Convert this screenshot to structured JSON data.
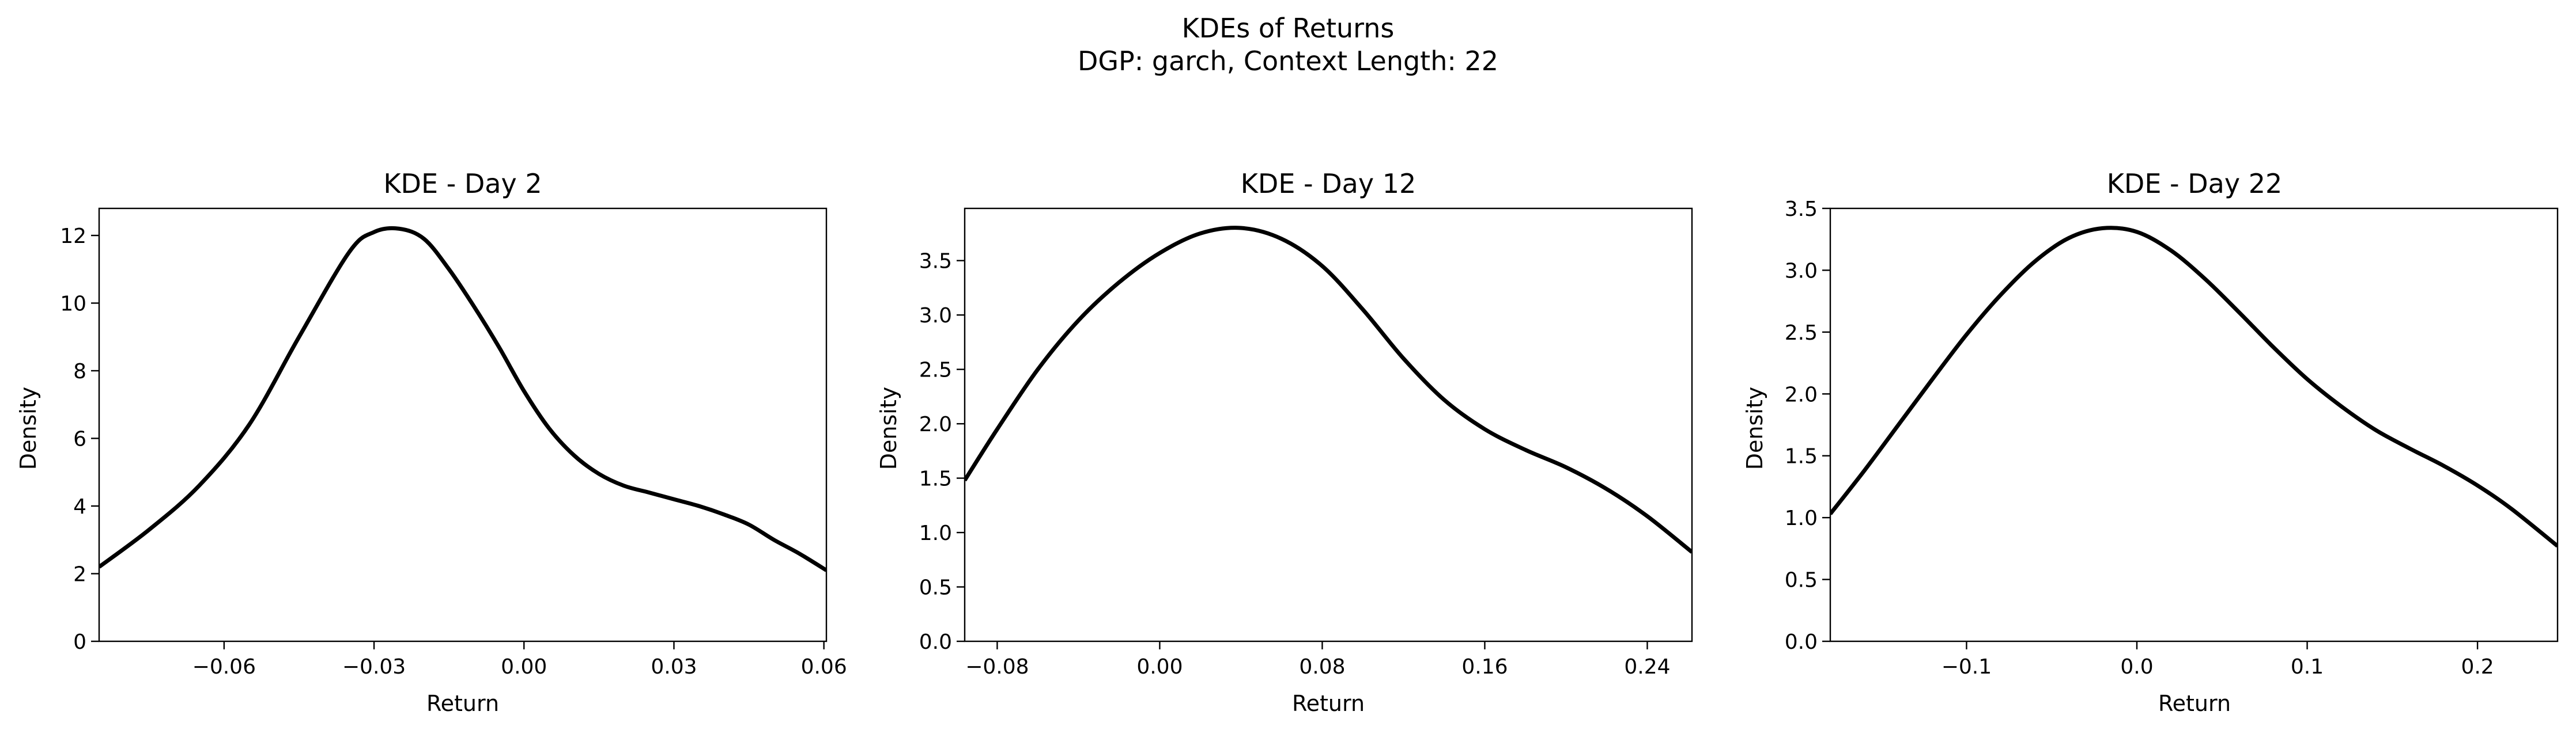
{
  "figure": {
    "title_line1": "KDEs of Returns",
    "title_line2": "DGP: garch, Context Length: 22"
  },
  "chart_data": [
    {
      "type": "line",
      "title": "KDE - Day 2",
      "xlabel": "Return",
      "ylabel": "Density",
      "xlim": [
        -0.085,
        0.0605
      ],
      "ylim": [
        0,
        12.8
      ],
      "xticks": [
        -0.06,
        -0.03,
        0.0,
        0.03,
        0.06
      ],
      "xtick_labels": [
        "−0.06",
        "−0.03",
        "0.00",
        "0.03",
        "0.06"
      ],
      "yticks": [
        0,
        2,
        4,
        6,
        8,
        10,
        12
      ],
      "ytick_labels": [
        "0",
        "2",
        "4",
        "6",
        "8",
        "10",
        "12"
      ],
      "grid": false,
      "series": [
        {
          "color": "#000000",
          "x": [
            -0.085,
            -0.075,
            -0.065,
            -0.055,
            -0.045,
            -0.035,
            -0.03,
            -0.025,
            -0.02,
            -0.015,
            -0.01,
            -0.005,
            0.0,
            0.005,
            0.01,
            0.015,
            0.02,
            0.025,
            0.03,
            0.035,
            0.04,
            0.045,
            0.05,
            0.055,
            0.0605
          ],
          "y": [
            2.2,
            3.3,
            4.6,
            6.4,
            9.0,
            11.5,
            12.1,
            12.2,
            11.9,
            11.0,
            9.9,
            8.7,
            7.4,
            6.3,
            5.5,
            4.95,
            4.6,
            4.4,
            4.2,
            4.0,
            3.75,
            3.45,
            3.0,
            2.6,
            2.1
          ]
        }
      ]
    },
    {
      "type": "line",
      "title": "KDE - Day 12",
      "xlabel": "Return",
      "ylabel": "Density",
      "xlim": [
        -0.096,
        0.262
      ],
      "ylim": [
        0,
        3.98
      ],
      "xticks": [
        -0.08,
        0.0,
        0.08,
        0.16,
        0.24
      ],
      "xtick_labels": [
        "−0.08",
        "0.00",
        "0.08",
        "0.16",
        "0.24"
      ],
      "yticks": [
        0,
        0.5,
        1.0,
        1.5,
        2.0,
        2.5,
        3.0,
        3.5
      ],
      "ytick_labels": [
        "0.0",
        "0.5",
        "1.0",
        "1.5",
        "2.0",
        "2.5",
        "3.0",
        "3.5"
      ],
      "grid": false,
      "series": [
        {
          "color": "#000000",
          "x": [
            -0.096,
            -0.08,
            -0.06,
            -0.04,
            -0.02,
            0.0,
            0.02,
            0.04,
            0.06,
            0.08,
            0.1,
            0.12,
            0.14,
            0.16,
            0.18,
            0.2,
            0.22,
            0.24,
            0.262
          ],
          "y": [
            1.48,
            1.95,
            2.5,
            2.95,
            3.3,
            3.57,
            3.75,
            3.8,
            3.7,
            3.45,
            3.05,
            2.6,
            2.22,
            1.95,
            1.76,
            1.6,
            1.4,
            1.15,
            0.82
          ]
        }
      ]
    },
    {
      "type": "line",
      "title": "KDE - Day 22",
      "xlabel": "Return",
      "ylabel": "Density",
      "xlim": [
        -0.18,
        0.247
      ],
      "ylim": [
        0,
        3.5
      ],
      "xticks": [
        -0.1,
        0.0,
        0.1,
        0.2
      ],
      "xtick_labels": [
        "−0.1",
        "0.0",
        "0.1",
        "0.2"
      ],
      "yticks": [
        0,
        0.5,
        1.0,
        1.5,
        2.0,
        2.5,
        3.0,
        3.5
      ],
      "ytick_labels": [
        "0.0",
        "0.5",
        "1.0",
        "1.5",
        "2.0",
        "2.5",
        "3.0",
        "3.5"
      ],
      "grid": false,
      "series": [
        {
          "color": "#000000",
          "x": [
            -0.18,
            -0.16,
            -0.14,
            -0.12,
            -0.1,
            -0.08,
            -0.06,
            -0.04,
            -0.02,
            0.0,
            0.02,
            0.04,
            0.06,
            0.08,
            0.1,
            0.12,
            0.14,
            0.16,
            0.18,
            0.2,
            0.22,
            0.247
          ],
          "y": [
            1.03,
            1.38,
            1.75,
            2.12,
            2.48,
            2.8,
            3.07,
            3.26,
            3.34,
            3.31,
            3.16,
            2.93,
            2.66,
            2.38,
            2.12,
            1.9,
            1.71,
            1.56,
            1.42,
            1.26,
            1.07,
            0.77
          ]
        }
      ]
    }
  ]
}
